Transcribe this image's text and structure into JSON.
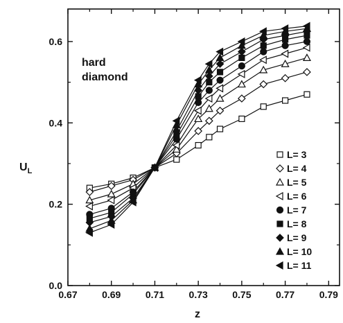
{
  "chart_data": {
    "type": "line",
    "title": "",
    "xlabel": "z",
    "ylabel": "U",
    "ylabel_subscript": "L",
    "xlim": [
      0.67,
      0.795
    ],
    "ylim": [
      0.0,
      0.68
    ],
    "xticks": [
      0.67,
      0.69,
      0.71,
      0.73,
      0.75,
      0.77,
      0.79
    ],
    "xtick_labels": [
      "0.67",
      "0.69",
      "0.71",
      "0.73",
      "0.75",
      "0.77",
      "0.79"
    ],
    "yticks": [
      0.0,
      0.2,
      0.4,
      0.6
    ],
    "ytick_labels": [
      "0.0",
      "0.2",
      "0.4",
      "0.6"
    ],
    "grid": false,
    "legend_position": "bottom-right",
    "annotation": [
      "hard",
      "diamond"
    ],
    "x": [
      0.68,
      0.69,
      0.7,
      0.71,
      0.72,
      0.73,
      0.735,
      0.74,
      0.75,
      0.76,
      0.77,
      0.78
    ],
    "series": [
      {
        "name": "L= 3",
        "marker": "square-open",
        "values": [
          0.24,
          0.25,
          0.265,
          0.29,
          0.31,
          0.345,
          0.365,
          0.385,
          0.41,
          0.44,
          0.455,
          0.47
        ]
      },
      {
        "name": "L= 4",
        "marker": "diamond-open",
        "values": [
          0.23,
          0.245,
          0.26,
          0.29,
          0.325,
          0.38,
          0.405,
          0.43,
          0.46,
          0.495,
          0.51,
          0.525
        ]
      },
      {
        "name": "L= 5",
        "marker": "triangle-up-open",
        "values": [
          0.21,
          0.225,
          0.25,
          0.29,
          0.335,
          0.41,
          0.435,
          0.46,
          0.495,
          0.53,
          0.545,
          0.56
        ]
      },
      {
        "name": "L= 6",
        "marker": "triangle-left-open",
        "values": [
          0.195,
          0.21,
          0.24,
          0.29,
          0.345,
          0.43,
          0.46,
          0.485,
          0.52,
          0.555,
          0.57,
          0.585
        ]
      },
      {
        "name": "L= 7",
        "marker": "circle-filled",
        "values": [
          0.175,
          0.19,
          0.23,
          0.29,
          0.36,
          0.45,
          0.48,
          0.505,
          0.54,
          0.575,
          0.59,
          0.6
        ]
      },
      {
        "name": "L= 8",
        "marker": "square-filled",
        "values": [
          0.165,
          0.18,
          0.225,
          0.29,
          0.37,
          0.465,
          0.5,
          0.525,
          0.56,
          0.59,
          0.605,
          0.615
        ]
      },
      {
        "name": "L= 9",
        "marker": "diamond-filled",
        "values": [
          0.155,
          0.17,
          0.215,
          0.29,
          0.38,
          0.48,
          0.515,
          0.545,
          0.575,
          0.605,
          0.615,
          0.625
        ]
      },
      {
        "name": "L= 10",
        "marker": "triangle-up-filled",
        "values": [
          0.14,
          0.16,
          0.21,
          0.29,
          0.395,
          0.495,
          0.53,
          0.56,
          0.59,
          0.615,
          0.625,
          0.632
        ]
      },
      {
        "name": "L= 11",
        "marker": "triangle-left-filled",
        "values": [
          0.13,
          0.15,
          0.205,
          0.29,
          0.405,
          0.505,
          0.545,
          0.575,
          0.6,
          0.625,
          0.632,
          0.638
        ]
      }
    ]
  }
}
